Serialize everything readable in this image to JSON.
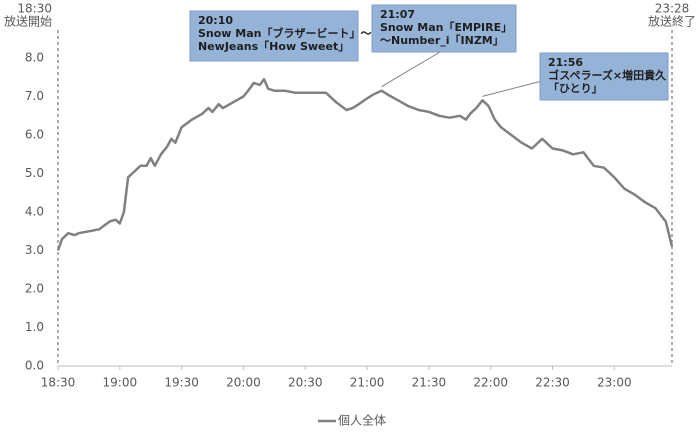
{
  "chart_data": {
    "type": "line",
    "x": [
      "18:30",
      "18:32",
      "18:35",
      "18:38",
      "18:40",
      "18:45",
      "18:50",
      "18:55",
      "18:58",
      "19:00",
      "19:02",
      "19:04",
      "19:06",
      "19:10",
      "19:13",
      "19:15",
      "19:17",
      "19:20",
      "19:23",
      "19:25",
      "19:27",
      "19:30",
      "19:35",
      "19:40",
      "19:43",
      "19:45",
      "19:48",
      "19:50",
      "19:55",
      "20:00",
      "20:03",
      "20:05",
      "20:08",
      "20:10",
      "20:12",
      "20:15",
      "20:20",
      "20:25",
      "20:30",
      "20:35",
      "20:40",
      "20:45",
      "20:50",
      "20:53",
      "20:56",
      "21:00",
      "21:03",
      "21:07",
      "21:10",
      "21:15",
      "21:20",
      "21:25",
      "21:30",
      "21:35",
      "21:40",
      "21:45",
      "21:48",
      "21:50",
      "21:53",
      "21:56",
      "21:59",
      "22:02",
      "22:05",
      "22:10",
      "22:15",
      "22:20",
      "22:25",
      "22:30",
      "22:35",
      "22:40",
      "22:45",
      "22:50",
      "22:55",
      "23:00",
      "23:05",
      "23:10",
      "23:15",
      "23:20",
      "23:25",
      "23:28"
    ],
    "series": [
      {
        "name": "個人全体",
        "color": "#808080",
        "values": [
          3.0,
          3.3,
          3.45,
          3.4,
          3.45,
          3.5,
          3.55,
          3.75,
          3.8,
          3.7,
          4.0,
          4.9,
          5.0,
          5.2,
          5.2,
          5.4,
          5.2,
          5.5,
          5.7,
          5.9,
          5.8,
          6.2,
          6.4,
          6.55,
          6.7,
          6.6,
          6.8,
          6.7,
          6.85,
          7.0,
          7.2,
          7.35,
          7.3,
          7.45,
          7.2,
          7.15,
          7.15,
          7.1,
          7.1,
          7.1,
          7.1,
          6.85,
          6.65,
          6.7,
          6.8,
          6.95,
          7.05,
          7.15,
          7.05,
          6.9,
          6.75,
          6.65,
          6.6,
          6.5,
          6.45,
          6.5,
          6.4,
          6.55,
          6.7,
          6.9,
          6.75,
          6.4,
          6.2,
          6.0,
          5.8,
          5.65,
          5.9,
          5.65,
          5.6,
          5.5,
          5.55,
          5.2,
          5.15,
          4.9,
          4.6,
          4.45,
          4.25,
          4.1,
          3.75,
          3.1
        ]
      }
    ],
    "xlim": [
      "18:30",
      "23:28"
    ],
    "xticks": [
      "18:30",
      "19:00",
      "19:30",
      "20:00",
      "20:30",
      "21:00",
      "21:30",
      "22:00",
      "22:30",
      "23:00"
    ],
    "ylim": [
      0,
      8
    ],
    "yticks": [
      {
        "value": 0,
        "label": "0.0"
      },
      {
        "value": 1,
        "label": "1.0"
      },
      {
        "value": 2,
        "label": "2.0"
      },
      {
        "value": 3,
        "label": "3.0"
      },
      {
        "value": 4,
        "label": "4.0"
      },
      {
        "value": 5,
        "label": "5.0"
      },
      {
        "value": 6,
        "label": "6.0"
      },
      {
        "value": 7,
        "label": "7.0"
      },
      {
        "value": 8,
        "label": "8.0"
      }
    ],
    "markers": [
      {
        "time": "18:30",
        "label": "放送開始"
      },
      {
        "time": "23:28",
        "label": "放送終了"
      }
    ],
    "annotations": [
      {
        "time": "20:10",
        "lines": [
          "Snow Man「ブラザービート」～",
          "NewJeans「How Sweet」"
        ]
      },
      {
        "time": "21:07",
        "lines": [
          "Snow Man「EMPIRE」",
          "～Number_i「INZM」"
        ]
      },
      {
        "time": "21:56",
        "lines": [
          "ゴスペラーズ×増田貴久",
          "「ひとり」"
        ]
      }
    ]
  }
}
